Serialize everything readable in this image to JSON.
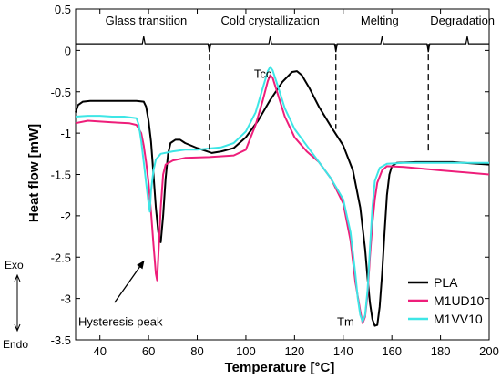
{
  "chart_data": {
    "type": "line",
    "xlabel": "Temperature [°C]",
    "ylabel": "Heat flow [mW]",
    "xlim": [
      30,
      200
    ],
    "ylim": [
      -3.5,
      0.5
    ],
    "xticks": [
      40,
      60,
      80,
      100,
      120,
      140,
      160,
      180,
      200
    ],
    "yticks": [
      0.5,
      0,
      -0.5,
      -1,
      -1.5,
      -2,
      -2.5,
      -3,
      -3.5
    ],
    "xtick_labels": [
      "40",
      "60",
      "80",
      "100",
      "120",
      "140",
      "160",
      "180",
      "200"
    ],
    "ytick_labels": [
      "0.5",
      "0",
      "-0.5",
      "-1",
      "-1.5",
      "-2",
      "-2.5",
      "-3",
      "-3.5"
    ],
    "grid": false,
    "legend_position": "bottom-right",
    "series": [
      {
        "name": "PLA",
        "color": "#000000",
        "points": [
          [
            30,
            -0.75
          ],
          [
            31,
            -0.66
          ],
          [
            33,
            -0.62
          ],
          [
            36,
            -0.61
          ],
          [
            45,
            -0.61
          ],
          [
            55,
            -0.61
          ],
          [
            58,
            -0.62
          ],
          [
            59,
            -0.68
          ],
          [
            60,
            -0.85
          ],
          [
            61,
            -1.1
          ],
          [
            62,
            -1.5
          ],
          [
            63,
            -1.9
          ],
          [
            64,
            -2.2
          ],
          [
            65,
            -2.32
          ],
          [
            66,
            -2.0
          ],
          [
            67,
            -1.55
          ],
          [
            68,
            -1.25
          ],
          [
            69,
            -1.12
          ],
          [
            71,
            -1.08
          ],
          [
            73,
            -1.08
          ],
          [
            75,
            -1.12
          ],
          [
            80,
            -1.18
          ],
          [
            84,
            -1.22
          ],
          [
            86,
            -1.24
          ],
          [
            90,
            -1.22
          ],
          [
            95,
            -1.18
          ],
          [
            100,
            -1.05
          ],
          [
            105,
            -0.85
          ],
          [
            110,
            -0.6
          ],
          [
            115,
            -0.38
          ],
          [
            119,
            -0.26
          ],
          [
            121,
            -0.25
          ],
          [
            123,
            -0.3
          ],
          [
            126,
            -0.45
          ],
          [
            130,
            -0.68
          ],
          [
            135,
            -0.92
          ],
          [
            140,
            -1.15
          ],
          [
            144,
            -1.45
          ],
          [
            147,
            -1.9
          ],
          [
            149,
            -2.4
          ],
          [
            150,
            -2.75
          ],
          [
            151,
            -3.05
          ],
          [
            152,
            -3.25
          ],
          [
            153,
            -3.33
          ],
          [
            154,
            -3.32
          ],
          [
            155,
            -3.1
          ],
          [
            156,
            -2.7
          ],
          [
            157,
            -2.2
          ],
          [
            158,
            -1.75
          ],
          [
            159,
            -1.5
          ],
          [
            160,
            -1.4
          ],
          [
            162,
            -1.36
          ],
          [
            170,
            -1.35
          ],
          [
            185,
            -1.35
          ],
          [
            200,
            -1.38
          ]
        ]
      },
      {
        "name": "M1UD10",
        "color": "#ee1e7a",
        "points": [
          [
            30,
            -0.88
          ],
          [
            35,
            -0.85
          ],
          [
            40,
            -0.86
          ],
          [
            45,
            -0.87
          ],
          [
            52,
            -0.88
          ],
          [
            55,
            -0.9
          ],
          [
            57,
            -1.0
          ],
          [
            58,
            -1.15
          ],
          [
            59,
            -1.35
          ],
          [
            60,
            -1.6
          ],
          [
            61,
            -1.95
          ],
          [
            62,
            -2.35
          ],
          [
            63,
            -2.7
          ],
          [
            63.5,
            -2.78
          ],
          [
            64,
            -2.5
          ],
          [
            65,
            -1.9
          ],
          [
            66,
            -1.5
          ],
          [
            67,
            -1.38
          ],
          [
            70,
            -1.33
          ],
          [
            75,
            -1.3
          ],
          [
            85,
            -1.29
          ],
          [
            95,
            -1.27
          ],
          [
            100,
            -1.2
          ],
          [
            104,
            -0.9
          ],
          [
            107,
            -0.6
          ],
          [
            109,
            -0.37
          ],
          [
            110,
            -0.3
          ],
          [
            111,
            -0.33
          ],
          [
            113,
            -0.52
          ],
          [
            116,
            -0.8
          ],
          [
            120,
            -1.05
          ],
          [
            125,
            -1.22
          ],
          [
            130,
            -1.35
          ],
          [
            135,
            -1.55
          ],
          [
            140,
            -1.85
          ],
          [
            143,
            -2.3
          ],
          [
            145,
            -2.8
          ],
          [
            147,
            -3.15
          ],
          [
            148,
            -3.3
          ],
          [
            149,
            -3.22
          ],
          [
            150,
            -2.95
          ],
          [
            151,
            -2.5
          ],
          [
            152,
            -2.1
          ],
          [
            153,
            -1.8
          ],
          [
            154,
            -1.6
          ],
          [
            156,
            -1.45
          ],
          [
            158,
            -1.4
          ],
          [
            165,
            -1.41
          ],
          [
            180,
            -1.45
          ],
          [
            200,
            -1.5
          ]
        ]
      },
      {
        "name": "M1VV10",
        "color": "#3ee6e6",
        "points": [
          [
            30,
            -0.8
          ],
          [
            35,
            -0.79
          ],
          [
            40,
            -0.79
          ],
          [
            45,
            -0.8
          ],
          [
            50,
            -0.8
          ],
          [
            55,
            -0.82
          ],
          [
            56,
            -0.9
          ],
          [
            57,
            -1.1
          ],
          [
            58,
            -1.35
          ],
          [
            59,
            -1.6
          ],
          [
            60,
            -1.85
          ],
          [
            60.5,
            -1.95
          ],
          [
            61,
            -1.7
          ],
          [
            62,
            -1.45
          ],
          [
            63,
            -1.32
          ],
          [
            65,
            -1.25
          ],
          [
            70,
            -1.22
          ],
          [
            75,
            -1.2
          ],
          [
            80,
            -1.2
          ],
          [
            90,
            -1.17
          ],
          [
            95,
            -1.12
          ],
          [
            100,
            -0.98
          ],
          [
            104,
            -0.75
          ],
          [
            107,
            -0.45
          ],
          [
            109,
            -0.25
          ],
          [
            110,
            -0.2
          ],
          [
            111,
            -0.24
          ],
          [
            113,
            -0.42
          ],
          [
            116,
            -0.7
          ],
          [
            120,
            -0.95
          ],
          [
            125,
            -1.15
          ],
          [
            130,
            -1.35
          ],
          [
            135,
            -1.55
          ],
          [
            140,
            -1.8
          ],
          [
            143,
            -2.2
          ],
          [
            145,
            -2.7
          ],
          [
            146,
            -3.0
          ],
          [
            147,
            -3.2
          ],
          [
            148,
            -3.28
          ],
          [
            149,
            -3.2
          ],
          [
            150,
            -2.9
          ],
          [
            151,
            -2.4
          ],
          [
            152,
            -1.9
          ],
          [
            153,
            -1.58
          ],
          [
            155,
            -1.42
          ],
          [
            158,
            -1.37
          ],
          [
            165,
            -1.36
          ],
          [
            180,
            -1.36
          ],
          [
            200,
            -1.36
          ]
        ]
      }
    ],
    "annotations": {
      "phase_labels": [
        {
          "text": "Glass transition",
          "x": 59
        },
        {
          "text": "Cold crystallization",
          "x": 110
        },
        {
          "text": "Melting",
          "x": 155
        },
        {
          "text": "Degradation",
          "x": 189
        }
      ],
      "ref_line_y": 0.08,
      "ref_notches": [
        {
          "x": 58,
          "dir": "up"
        },
        {
          "x": 85,
          "dir": "down"
        },
        {
          "x": 110,
          "dir": "up"
        },
        {
          "x": 137,
          "dir": "down"
        },
        {
          "x": 156,
          "dir": "up"
        },
        {
          "x": 175,
          "dir": "down"
        },
        {
          "x": 191,
          "dir": "up"
        }
      ],
      "dividers": [
        {
          "x": 85,
          "y_from": 0.08,
          "y_to": -1.2
        },
        {
          "x": 137,
          "y_from": 0.08,
          "y_to": -0.95
        },
        {
          "x": 175,
          "y_from": 0.08,
          "y_to": -1.25
        }
      ],
      "tcc": {
        "text": "Tcc",
        "x": 107,
        "y": -0.33
      },
      "tm": {
        "text": "Tm",
        "x": 141,
        "y": -3.33
      },
      "hysteresis": {
        "text": "Hysteresis peak",
        "x": 30,
        "y": -3.33,
        "arrow_from": [
          46,
          -3.05
        ],
        "arrow_to": [
          58,
          -2.55
        ]
      },
      "exo_label": "Exo",
      "endo_label": "Endo"
    }
  }
}
